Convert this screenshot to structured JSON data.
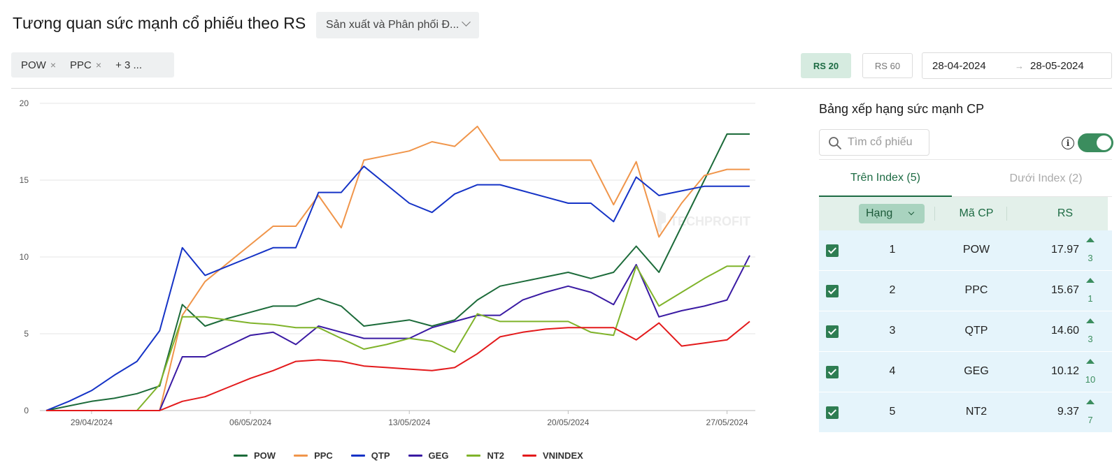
{
  "header": {
    "title": "Tương quan sức mạnh cổ phiếu theo RS",
    "industry_select": "Sản xuất và Phân phối Đ..."
  },
  "filters": {
    "tickers": [
      {
        "label": "POW"
      },
      {
        "label": "PPC"
      }
    ],
    "more": "+ 3 ...",
    "rs20_label": "RS 20",
    "rs60_label": "RS 60",
    "date_from": "28-04-2024",
    "date_to": "28-05-2024",
    "date_arrow": "→"
  },
  "watermark": "TECHPROFIT",
  "chart_data": {
    "type": "line",
    "ylim": [
      0,
      20
    ],
    "yticks": [
      0,
      5,
      10,
      15,
      20
    ],
    "x": [
      "27/04/2024",
      "28/04/2024",
      "29/04/2024",
      "30/04/2024",
      "01/05/2024",
      "02/05/2024",
      "03/05/2024",
      "04/05/2024",
      "05/05/2024",
      "06/05/2024",
      "07/05/2024",
      "08/05/2024",
      "09/05/2024",
      "10/05/2024",
      "11/05/2024",
      "12/05/2024",
      "13/05/2024",
      "14/05/2024",
      "15/05/2024",
      "16/05/2024",
      "17/05/2024",
      "18/05/2024",
      "19/05/2024",
      "20/05/2024",
      "21/05/2024",
      "22/05/2024",
      "23/05/2024",
      "24/05/2024",
      "25/05/2024",
      "26/05/2024",
      "27/05/2024",
      "28/05/2024"
    ],
    "xtick_labels": [
      "29/04/2024",
      "06/05/2024",
      "13/05/2024",
      "20/05/2024",
      "27/05/2024"
    ],
    "series": [
      {
        "name": "POW",
        "color": "#1c6b3a",
        "values": [
          0,
          0.3,
          0.6,
          0.8,
          1.1,
          1.6,
          6.9,
          5.5,
          6.0,
          6.4,
          6.8,
          6.8,
          7.3,
          6.8,
          5.5,
          5.7,
          5.9,
          5.5,
          5.9,
          7.2,
          8.1,
          8.4,
          8.7,
          9.0,
          8.6,
          9.0,
          10.7,
          9.0,
          12.0,
          15.0,
          18.0,
          18.0
        ]
      },
      {
        "name": "PPC",
        "color": "#f0954a",
        "values": [
          0,
          0,
          0,
          0,
          0,
          0,
          6.2,
          8.4,
          9.6,
          10.8,
          12.0,
          12.0,
          14.0,
          11.9,
          16.3,
          16.6,
          16.9,
          17.5,
          17.2,
          18.5,
          16.3,
          16.3,
          16.3,
          16.3,
          16.3,
          13.4,
          16.2,
          11.3,
          13.5,
          15.3,
          15.7,
          15.7
        ]
      },
      {
        "name": "QTP",
        "color": "#1533c6",
        "values": [
          0,
          0.6,
          1.3,
          2.3,
          3.2,
          5.2,
          10.6,
          8.8,
          9.4,
          10.0,
          10.6,
          10.6,
          14.2,
          14.2,
          15.9,
          14.7,
          13.5,
          12.9,
          14.1,
          14.7,
          14.7,
          14.3,
          13.9,
          13.5,
          13.5,
          12.3,
          15.2,
          14.0,
          14.3,
          14.6,
          14.6,
          14.6
        ]
      },
      {
        "name": "GEG",
        "color": "#3a1aa3",
        "values": [
          0,
          0,
          0,
          0,
          0,
          0,
          3.5,
          3.5,
          4.2,
          4.9,
          5.1,
          4.3,
          5.5,
          5.1,
          4.7,
          4.7,
          4.7,
          5.4,
          5.8,
          6.2,
          6.2,
          7.2,
          7.7,
          8.1,
          7.7,
          6.9,
          9.5,
          6.1,
          6.5,
          6.8,
          7.2,
          10.1
        ]
      },
      {
        "name": "NT2",
        "color": "#7fb32a",
        "values": [
          0,
          0,
          0,
          0,
          0,
          1.7,
          6.1,
          6.1,
          5.9,
          5.7,
          5.6,
          5.4,
          5.4,
          4.7,
          4.0,
          4.3,
          4.7,
          4.5,
          3.8,
          6.3,
          5.8,
          5.8,
          5.8,
          5.8,
          5.1,
          4.9,
          9.4,
          6.8,
          7.7,
          8.6,
          9.4,
          9.4
        ]
      },
      {
        "name": "VNINDEX",
        "color": "#e31a1c",
        "values": [
          0,
          0,
          0,
          0,
          0,
          0,
          0.6,
          0.9,
          1.5,
          2.1,
          2.6,
          3.2,
          3.3,
          3.2,
          2.9,
          2.8,
          2.7,
          2.6,
          2.8,
          3.7,
          4.8,
          5.1,
          5.3,
          5.4,
          5.4,
          5.4,
          4.6,
          5.7,
          4.2,
          4.4,
          4.6,
          5.8
        ]
      }
    ]
  },
  "panel": {
    "title": "Bảng xếp hạng sức mạnh CP",
    "search_placeholder": "Tìm cổ phiếu",
    "info": "i",
    "tabs": {
      "above": "Trên Index (5)",
      "below": "Dưới Index (2)"
    },
    "columns": {
      "rank": "Hạng",
      "code": "Mã CP",
      "rs": "RS"
    },
    "rows": [
      {
        "rank": "1",
        "code": "POW",
        "rs": "17.97",
        "change": "3"
      },
      {
        "rank": "2",
        "code": "PPC",
        "rs": "15.67",
        "change": "1"
      },
      {
        "rank": "3",
        "code": "QTP",
        "rs": "14.60",
        "change": "3"
      },
      {
        "rank": "4",
        "code": "GEG",
        "rs": "10.12",
        "change": "10"
      },
      {
        "rank": "5",
        "code": "NT2",
        "rs": "9.37",
        "change": "7"
      }
    ]
  }
}
